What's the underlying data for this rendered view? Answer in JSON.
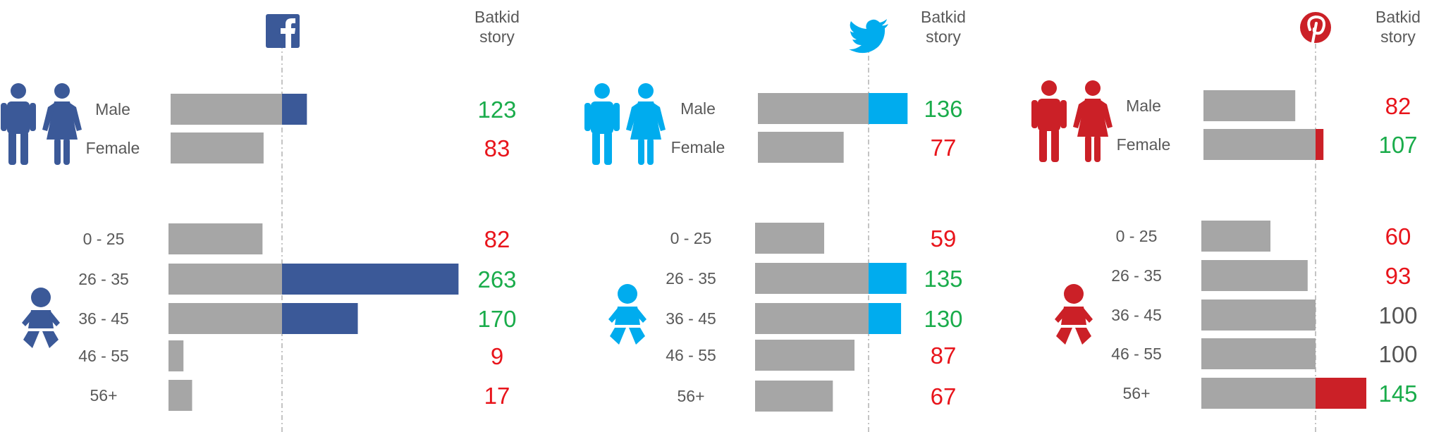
{
  "colors": {
    "bar_gray": "#a6a6a6",
    "good": "#1aac4b",
    "bad": "#e8141b",
    "neutral": "#555555",
    "text": "#595959",
    "dash": "#b0b0b0"
  },
  "chart_data": [
    {
      "type": "bar",
      "platform": "facebook",
      "icon": "facebook-icon",
      "accent": "#3b5998",
      "header": [
        "Batkid",
        "story"
      ],
      "index_baseline": 100,
      "gender": {
        "categories": [
          "Male",
          "Female"
        ],
        "values": [
          123,
          83
        ],
        "icon": "male-female-icon"
      },
      "age": {
        "categories": [
          "0 - 25",
          "26 - 35",
          "36 - 45",
          "46 - 55",
          "56+"
        ],
        "values": [
          82,
          263,
          170,
          9,
          17
        ],
        "icon": "baby-icon"
      }
    },
    {
      "type": "bar",
      "platform": "twitter",
      "icon": "twitter-bird-icon",
      "accent": "#00acee",
      "header": [
        "Batkid",
        "story"
      ],
      "index_baseline": 100,
      "gender": {
        "categories": [
          "Male",
          "Female"
        ],
        "values": [
          136,
          77
        ],
        "icon": "male-female-icon"
      },
      "age": {
        "categories": [
          "0 - 25",
          "26 - 35",
          "36 - 45",
          "46 - 55",
          "56+"
        ],
        "values": [
          59,
          135,
          130,
          87,
          67
        ],
        "icon": "baby-icon"
      }
    },
    {
      "type": "bar",
      "platform": "pinterest",
      "icon": "pinterest-icon",
      "accent": "#cb2027",
      "header": [
        "Batkid",
        "story"
      ],
      "index_baseline": 100,
      "gender": {
        "categories": [
          "Male",
          "Female"
        ],
        "values": [
          82,
          107
        ],
        "icon": "male-female-icon"
      },
      "age": {
        "categories": [
          "0 - 25",
          "26 - 35",
          "36 - 45",
          "46 - 55",
          "56+"
        ],
        "values": [
          60,
          93,
          100,
          100,
          145
        ],
        "icon": "baby-icon"
      }
    }
  ]
}
